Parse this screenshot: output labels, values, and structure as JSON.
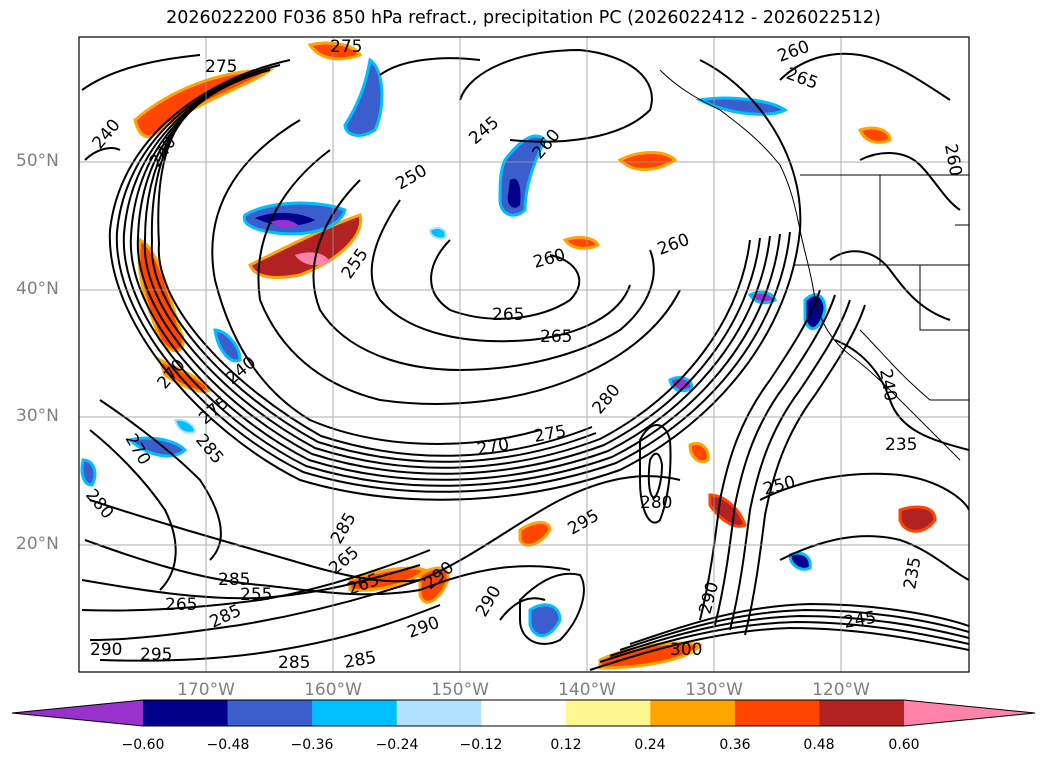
{
  "title": "2026022200 F036 850 hPa refract., precipitation PC (2026022412 - 2026022512)",
  "lat_labels": [
    "50°N",
    "40°N",
    "30°N",
    "20°N"
  ],
  "lon_labels": [
    "170°W",
    "160°W",
    "150°W",
    "140°W",
    "130°W",
    "120°W"
  ],
  "colorbar": {
    "ticks": [
      "−0.60",
      "−0.48",
      "−0.36",
      "−0.24",
      "−0.12",
      "0.12",
      "0.24",
      "0.36",
      "0.48",
      "0.60"
    ],
    "colors": [
      "#9932cc",
      "#00008b",
      "#3a5fcd",
      "#00bfff",
      "#b0e2ff",
      "#ffffff",
      "#fff68f",
      "#ffa500",
      "#ff4500",
      "#b22222",
      "#ff82ab"
    ]
  },
  "contour_labels": [
    "275",
    "240",
    "240",
    "245",
    "260",
    "260",
    "265",
    "250",
    "255",
    "260",
    "260",
    "265",
    "265",
    "240",
    "270",
    "275",
    "280",
    "275",
    "270",
    "270",
    "280",
    "285",
    "285",
    "265",
    "265",
    "285",
    "280",
    "295",
    "290",
    "285",
    "255",
    "265",
    "290",
    "290",
    "295",
    "290",
    "285",
    "285",
    "250",
    "245",
    "235",
    "235",
    "290",
    "300",
    "275",
    "260",
    "240"
  ]
}
